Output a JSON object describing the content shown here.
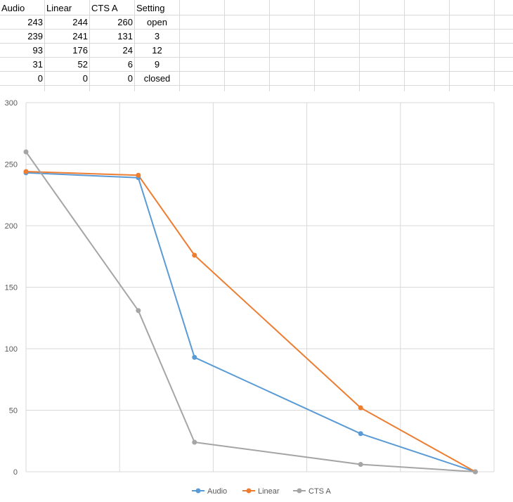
{
  "sheet": {
    "headers": [
      "Audio",
      "Linear",
      "CTS A",
      "Setting"
    ],
    "rows": [
      [
        "243",
        "244",
        "260",
        "open"
      ],
      [
        "239",
        "241",
        "131",
        "3"
      ],
      [
        "93",
        "176",
        "24",
        "12"
      ],
      [
        "31",
        "52",
        "6",
        "9"
      ],
      [
        "0",
        "0",
        "0",
        "closed"
      ]
    ]
  },
  "chart_data": {
    "type": "scatter",
    "mode": "lines+markers",
    "ylim": [
      0,
      300
    ],
    "yticks": [
      0,
      50,
      100,
      150,
      200,
      250,
      300
    ],
    "ytick_labels": [
      "0",
      "50",
      "100",
      "150",
      "200",
      "250",
      "300"
    ],
    "xlim": [
      0,
      1
    ],
    "x_gridlines": 5,
    "grid": true,
    "legend_position": "bottom",
    "series": [
      {
        "name": "Audio",
        "color": "#5b9bd5",
        "x": [
          0,
          0.24,
          0.36,
          0.715,
          0.96
        ],
        "y": [
          243,
          239,
          93,
          31,
          0
        ]
      },
      {
        "name": "Linear",
        "color": "#ed7d31",
        "x": [
          0,
          0.24,
          0.36,
          0.715,
          0.96
        ],
        "y": [
          244,
          241,
          176,
          52,
          0
        ]
      },
      {
        "name": "CTS A",
        "color": "#a5a5a5",
        "x": [
          0,
          0.24,
          0.36,
          0.715,
          0.96
        ],
        "y": [
          260,
          131,
          24,
          6,
          0
        ]
      }
    ]
  }
}
